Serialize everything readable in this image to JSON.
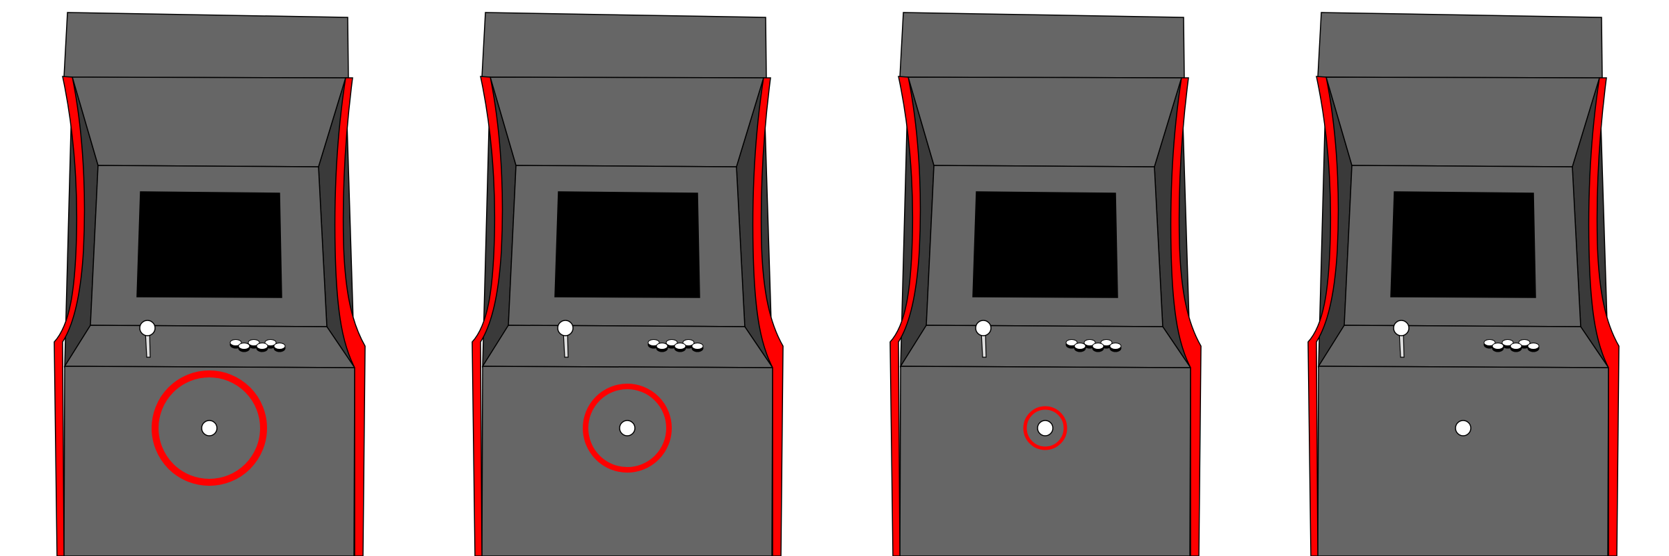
{
  "colors": {
    "background": "#ffffff",
    "cabinet_body": "#666666",
    "cabinet_side_shade": "#3a3a3a",
    "side_trim": "#ff0000",
    "screen": "#000000",
    "outline": "#000000",
    "joystick_ball": "#ffffff",
    "button_top": "#ffffff",
    "button_base": "#000000",
    "coin_slot": "#ffffff",
    "highlight_ring": "#ff0000"
  },
  "cabinets": [
    {
      "id": "cabinet-1",
      "highlight": {
        "ring_level": "large"
      }
    },
    {
      "id": "cabinet-2",
      "highlight": {
        "ring_level": "medium"
      }
    },
    {
      "id": "cabinet-3",
      "highlight": {
        "ring_level": "small"
      }
    },
    {
      "id": "cabinet-4",
      "highlight": {
        "ring_level": "none"
      }
    }
  ],
  "icons": {
    "cabinet": "arcade-cabinet-icon",
    "joystick": "joystick-icon",
    "buttons": "arcade-button-icon",
    "coin_slot": "coin-slot-icon",
    "ring": "highlight-ring-icon"
  }
}
